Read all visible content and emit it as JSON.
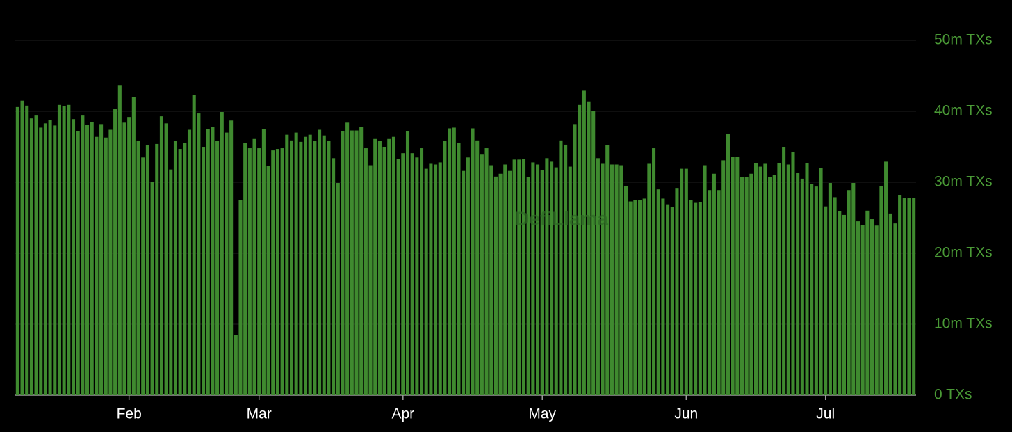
{
  "chart_data": {
    "type": "bar",
    "watermark": "DefiLlama",
    "color": "#3f8a2f",
    "grid": true,
    "ylim": [
      0,
      50
    ],
    "yticks": [
      {
        "value": 0,
        "label": "0 TXs"
      },
      {
        "value": 10,
        "label": "10m TXs"
      },
      {
        "value": 20,
        "label": "20m TXs"
      },
      {
        "value": 30,
        "label": "30m TXs"
      },
      {
        "value": 40,
        "label": "40m TXs"
      },
      {
        "value": 50,
        "label": "50m TXs"
      }
    ],
    "categories": [
      null,
      null,
      null,
      null,
      null,
      null,
      null,
      null,
      null,
      null,
      null,
      null,
      null,
      null,
      null,
      null,
      null,
      null,
      null,
      null,
      null,
      null,
      null,
      null,
      "Feb",
      null,
      null,
      null,
      null,
      null,
      null,
      null,
      null,
      null,
      null,
      null,
      null,
      null,
      null,
      null,
      null,
      null,
      null,
      null,
      null,
      null,
      null,
      null,
      null,
      null,
      null,
      null,
      "Mar",
      null,
      null,
      null,
      null,
      null,
      null,
      null,
      null,
      null,
      null,
      null,
      null,
      null,
      null,
      null,
      null,
      null,
      null,
      null,
      null,
      null,
      null,
      null,
      null,
      null,
      null,
      null,
      null,
      null,
      null,
      "Apr",
      null,
      null,
      null,
      null,
      null,
      null,
      null,
      null,
      null,
      null,
      null,
      null,
      null,
      null,
      null,
      null,
      null,
      null,
      null,
      null,
      null,
      null,
      null,
      null,
      null,
      null,
      null,
      null,
      null,
      "May",
      null,
      null,
      null,
      null,
      null,
      null,
      null,
      null,
      null,
      null,
      null,
      null,
      null,
      null,
      null,
      null,
      null,
      null,
      null,
      null,
      null,
      null,
      null,
      null,
      null,
      null,
      null,
      null,
      null,
      null,
      "Jun",
      null,
      null,
      null,
      null,
      null,
      null,
      null,
      null,
      null,
      null,
      null,
      null,
      null,
      null,
      null,
      null,
      null,
      null,
      null,
      null,
      null,
      null,
      null,
      null,
      null,
      null,
      null,
      null,
      null,
      "Jul",
      null,
      null,
      null,
      null,
      null,
      null,
      null,
      null,
      null,
      null,
      null,
      null,
      null,
      null,
      null,
      null,
      null,
      null,
      null
    ],
    "values": [
      40.6,
      41.5,
      40.8,
      39,
      39.4,
      37.7,
      38.3,
      38.8,
      38,
      40.9,
      40.7,
      40.9,
      38.9,
      37.2,
      39.4,
      38.1,
      38.5,
      36.4,
      38.2,
      36.3,
      37.4,
      40.3,
      43.7,
      38.4,
      39.2,
      42,
      35.8,
      33.5,
      35.2,
      30,
      35.4,
      39.3,
      38.3,
      31.8,
      35.8,
      34.7,
      35.5,
      37.4,
      42.3,
      39.7,
      34.9,
      37.5,
      37.8,
      35.8,
      39.9,
      37,
      38.7,
      8.5,
      27.5,
      35.5,
      34.8,
      36.1,
      34.8,
      37.5,
      32.3,
      34.5,
      34.7,
      34.8,
      36.7,
      35.9,
      37,
      35.7,
      36.4,
      36.7,
      35.8,
      37.4,
      36.6,
      35.8,
      33.4,
      29.9,
      37.2,
      38.4,
      37.3,
      37.3,
      37.8,
      34.8,
      32.4,
      36.1,
      35.8,
      35,
      36.1,
      36.4,
      33.3,
      34.1,
      37.2,
      34.1,
      33.5,
      34.8,
      31.9,
      32.6,
      32.5,
      32.8,
      35.8,
      37.6,
      37.7,
      35.5,
      31.6,
      33.5,
      37.6,
      35.9,
      33.9,
      34.8,
      32.4,
      30.8,
      31.2,
      32.5,
      31.6,
      33.2,
      33.2,
      33.3,
      30.7,
      32.8,
      32.5,
      31.7,
      33.4,
      32.9,
      32.1,
      35.9,
      35.3,
      32.2,
      38.2,
      40.9,
      42.9,
      41.4,
      40,
      33.4,
      32.6,
      35.2,
      32.5,
      32.5,
      32.4,
      29.5,
      27.3,
      27.5,
      27.5,
      27.7,
      32.6,
      34.8,
      29,
      27.7,
      26.9,
      26.5,
      29.2,
      31.9,
      31.9,
      27.5,
      27.1,
      27.2,
      32.4,
      28.9,
      31.2,
      28.9,
      33.1,
      36.8,
      33.6,
      33.6,
      30.7,
      30.7,
      31.2,
      32.7,
      32.2,
      32.6,
      30.7,
      31,
      32.7,
      34.9,
      32.5,
      34.3,
      31.3,
      30.5,
      32.7,
      29.8,
      29.4,
      32,
      26.6,
      29.9,
      27.9,
      25.9,
      25.4,
      28.9,
      29.9,
      24.5,
      24,
      26,
      24.8,
      23.9,
      29.5,
      32.9,
      25.6,
      24.2,
      28.2,
      27.8,
      27.8,
      27.8
    ]
  }
}
